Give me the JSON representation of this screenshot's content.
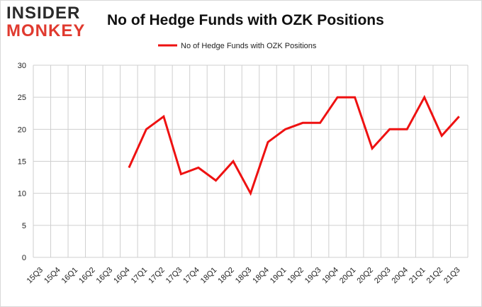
{
  "logo": {
    "line1": "INSIDER",
    "line2": "MONKEY"
  },
  "chart_data": {
    "type": "line",
    "title": "No of Hedge Funds with OZK Positions",
    "xlabel": "",
    "ylabel": "",
    "ylim": [
      0,
      30
    ],
    "yticks": [
      0,
      5,
      10,
      15,
      20,
      25,
      30
    ],
    "grid": true,
    "legend_position": "top-center",
    "categories": [
      "15Q3",
      "15Q4",
      "16Q1",
      "16Q2",
      "16Q3",
      "16Q4",
      "17Q1",
      "17Q2",
      "17Q3",
      "17Q4",
      "18Q1",
      "18Q2",
      "18Q3",
      "18Q4",
      "19Q1",
      "19Q2",
      "19Q3",
      "19Q4",
      "20Q1",
      "20Q2",
      "20Q3",
      "20Q4",
      "21Q1",
      "21Q2",
      "21Q3"
    ],
    "series": [
      {
        "name": "No of Hedge Funds with OZK Positions",
        "color": "#ee1111",
        "values": [
          null,
          null,
          null,
          null,
          null,
          14,
          20,
          22,
          13,
          14,
          12,
          15,
          10,
          18,
          20,
          21,
          21,
          25,
          25,
          17,
          20,
          20,
          25,
          19,
          22
        ]
      }
    ]
  }
}
